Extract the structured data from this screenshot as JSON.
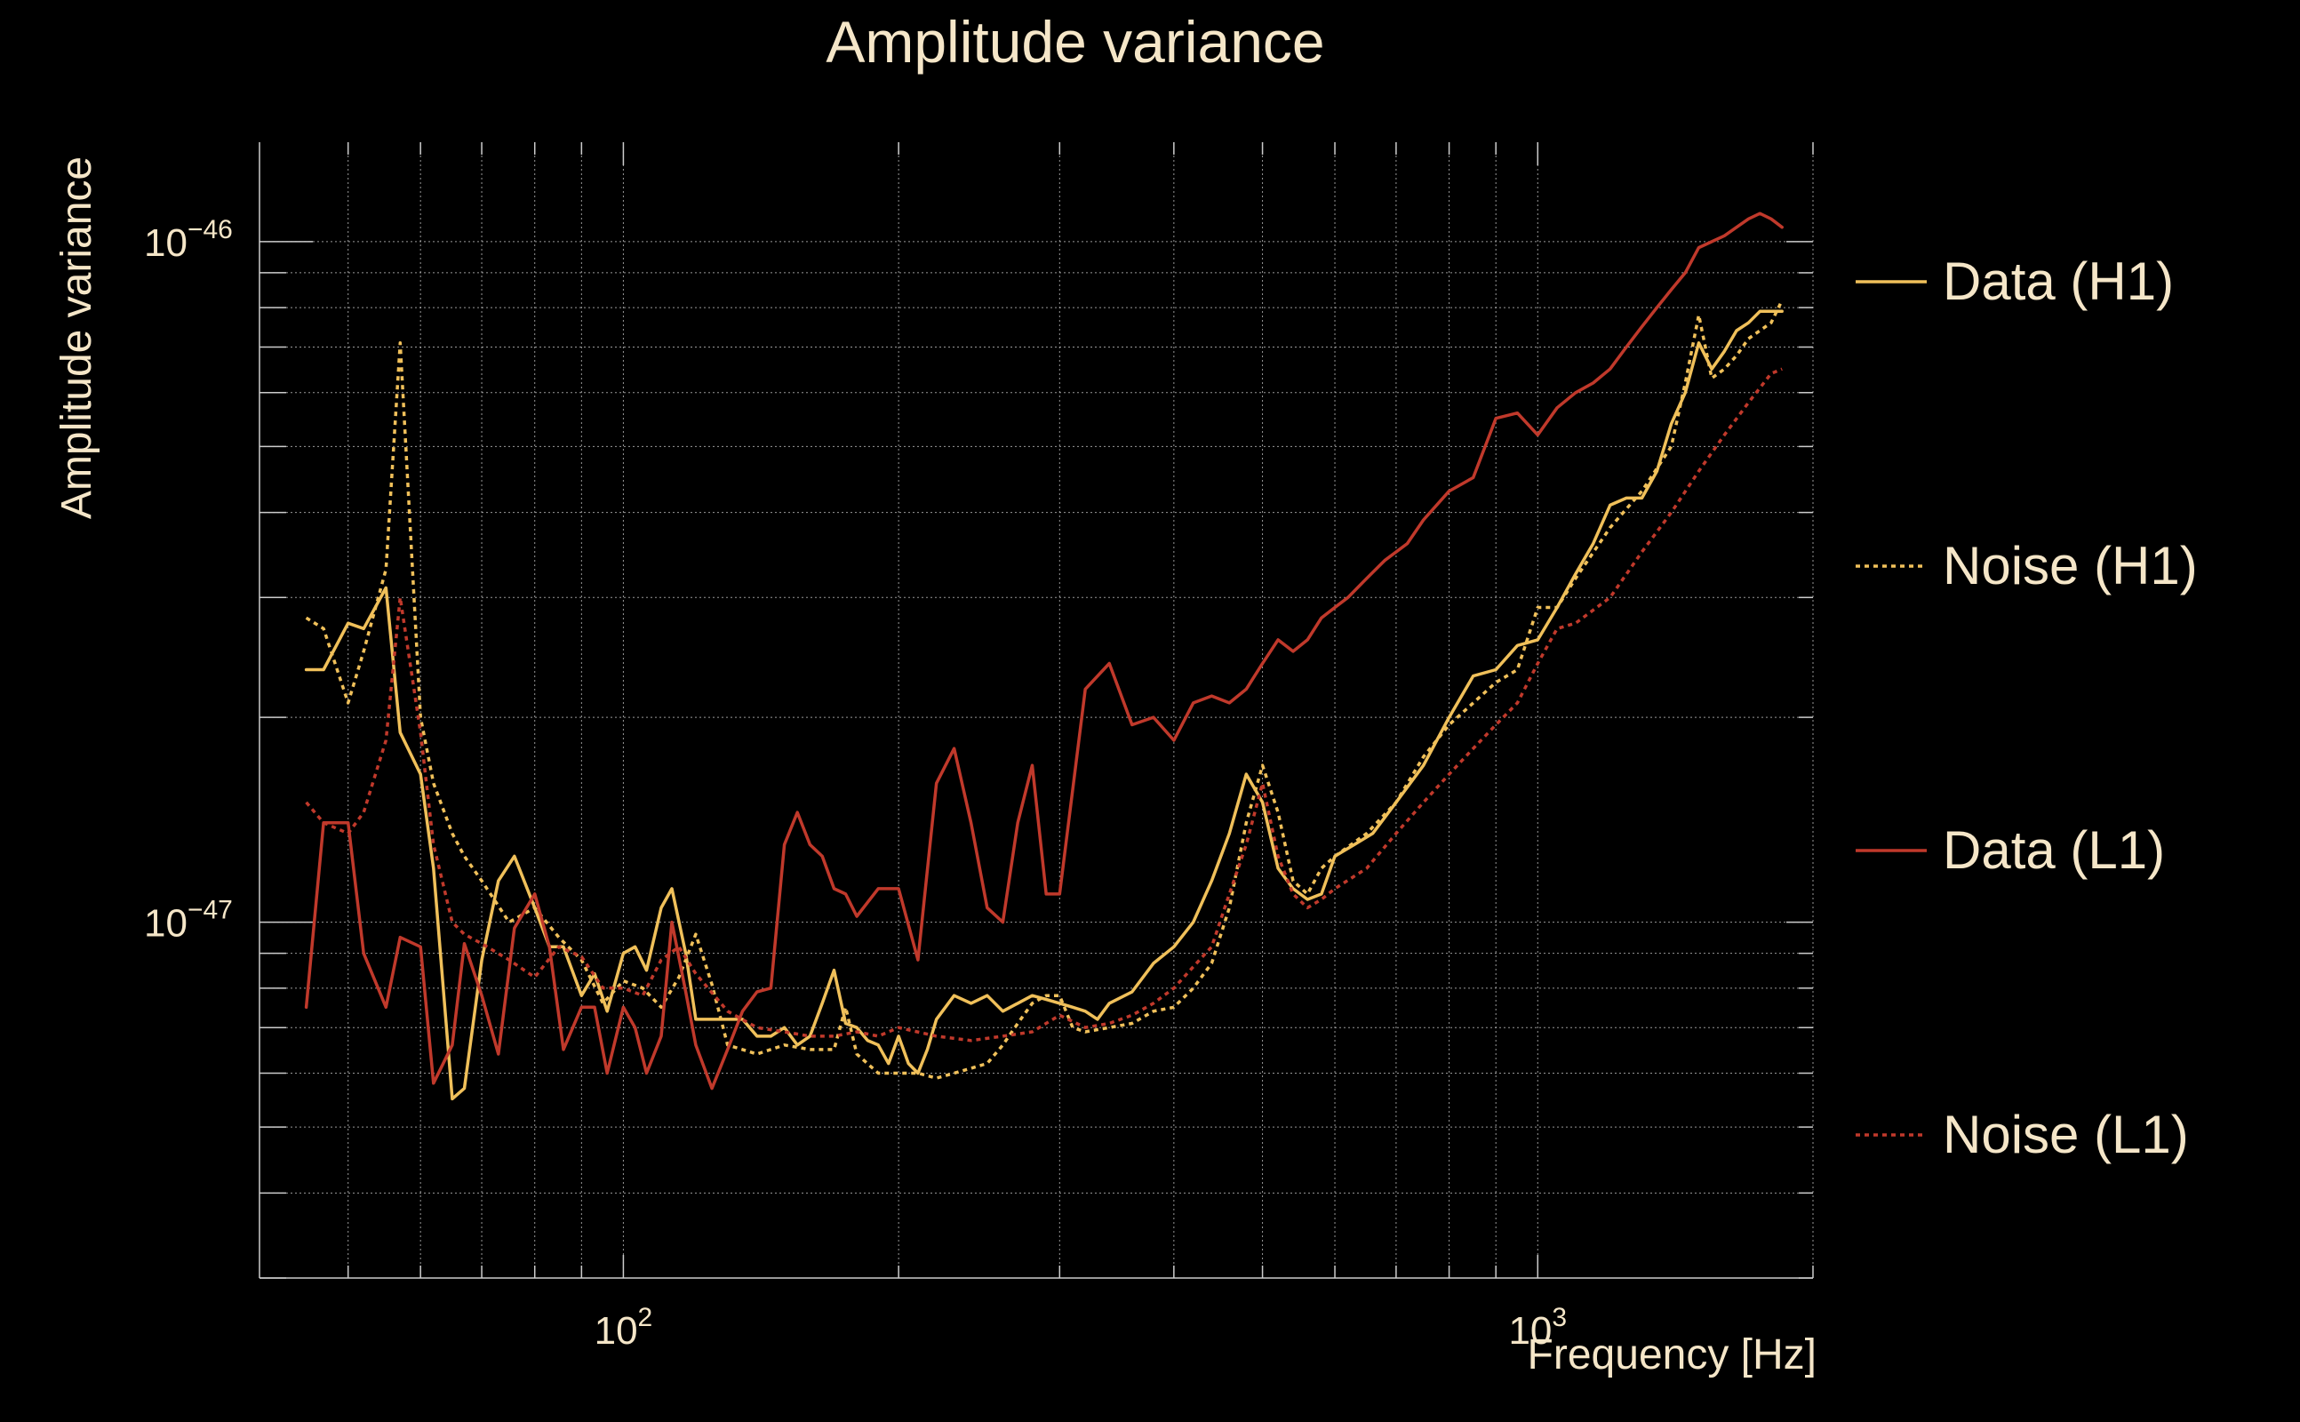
{
  "chart_data": {
    "type": "line",
    "title": "Amplitude variance",
    "xlabel": "Frequency [Hz]",
    "ylabel": "Amplitude variance",
    "xscale": "log",
    "yscale": "log",
    "xlim": [
      40,
      2000
    ],
    "ylim": [
      3e-48,
      1.4e-46
    ],
    "xticks": [
      {
        "value": 100,
        "base": "10",
        "exp": "2"
      },
      {
        "value": 1000,
        "base": "10",
        "exp": "3"
      }
    ],
    "yticks": [
      {
        "value": 1e-47,
        "base": "10",
        "exp": "−47"
      },
      {
        "value": 1e-46,
        "base": "10",
        "exp": "−46"
      }
    ],
    "grid": true,
    "legend_position": "right",
    "colors": {
      "h1": "#f0c05a",
      "l1": "#c0392b",
      "text": "#f5e6c8",
      "grid": "#cccccc"
    },
    "series": [
      {
        "name": "Data (H1)",
        "style": "solid",
        "color": "#f0c05a",
        "x": [
          45,
          47,
          50,
          52,
          55,
          57,
          60,
          62,
          65,
          67,
          70,
          73,
          76,
          80,
          83,
          86,
          90,
          93,
          96,
          100,
          103,
          106,
          110,
          113,
          117,
          120,
          125,
          130,
          135,
          140,
          145,
          150,
          155,
          160,
          165,
          170,
          175,
          180,
          185,
          190,
          195,
          200,
          205,
          210,
          215,
          220,
          230,
          240,
          250,
          260,
          270,
          280,
          290,
          300,
          310,
          320,
          330,
          340,
          360,
          380,
          400,
          420,
          440,
          460,
          480,
          500,
          520,
          540,
          560,
          580,
          600,
          630,
          660,
          700,
          750,
          800,
          850,
          900,
          950,
          1000,
          1050,
          1100,
          1150,
          1200,
          1250,
          1300,
          1350,
          1400,
          1450,
          1500,
          1550,
          1600,
          1650,
          1700,
          1750,
          1800,
          1850
        ],
        "y": [
          2.35e-47,
          2.35e-47,
          2.75e-47,
          2.7e-47,
          3.1e-47,
          1.9e-47,
          1.65e-47,
          1.2e-47,
          5.5e-48,
          5.7e-48,
          8.8e-48,
          1.15e-47,
          1.25e-47,
          1.05e-47,
          9.2e-48,
          9.2e-48,
          7.8e-48,
          8.4e-48,
          7.4e-48,
          9e-48,
          9.2e-48,
          8.5e-48,
          1.05e-47,
          1.12e-47,
          9e-48,
          7.2e-48,
          7.2e-48,
          7.2e-48,
          7.2e-48,
          6.8e-48,
          6.8e-48,
          7e-48,
          6.6e-48,
          6.8e-48,
          7.6e-48,
          8.5e-48,
          7.1e-48,
          7e-48,
          6.7e-48,
          6.6e-48,
          6.2e-48,
          6.8e-48,
          6.2e-48,
          6e-48,
          6.5e-48,
          7.2e-48,
          7.8e-48,
          7.6e-48,
          7.8e-48,
          7.4e-48,
          7.6e-48,
          7.8e-48,
          7.7e-48,
          7.6e-48,
          7.5e-48,
          7.4e-48,
          7.2e-48,
          7.6e-48,
          7.9e-48,
          8.7e-48,
          9.2e-48,
          1e-47,
          1.15e-47,
          1.35e-47,
          1.65e-47,
          1.5e-47,
          1.2e-47,
          1.12e-47,
          1.08e-47,
          1.1e-47,
          1.25e-47,
          1.3e-47,
          1.35e-47,
          1.5e-47,
          1.7e-47,
          2e-47,
          2.3e-47,
          2.35e-47,
          2.55e-47,
          2.6e-47,
          2.9e-47,
          3.25e-47,
          3.6e-47,
          4.1e-47,
          4.2e-47,
          4.2e-47,
          4.6e-47,
          5.4e-47,
          6e-47,
          7.1e-47,
          6.5e-47,
          6.9e-47,
          7.4e-47,
          7.6e-47,
          7.9e-47,
          7.9e-47,
          7.9e-47
        ]
      },
      {
        "name": "Noise (H1)",
        "style": "dotted",
        "color": "#f0c05a",
        "x": [
          45,
          47,
          50,
          52,
          55,
          57,
          60,
          62,
          65,
          67,
          70,
          75,
          80,
          85,
          90,
          95,
          100,
          105,
          110,
          115,
          120,
          125,
          130,
          140,
          150,
          160,
          170,
          175,
          180,
          190,
          200,
          210,
          220,
          230,
          240,
          250,
          260,
          270,
          280,
          290,
          300,
          310,
          320,
          340,
          360,
          380,
          400,
          420,
          440,
          460,
          480,
          500,
          520,
          540,
          560,
          580,
          600,
          650,
          700,
          750,
          800,
          850,
          900,
          950,
          1000,
          1050,
          1100,
          1200,
          1300,
          1400,
          1450,
          1500,
          1550,
          1600,
          1650,
          1700,
          1750,
          1800,
          1850
        ],
        "y": [
          2.8e-47,
          2.7e-47,
          2.1e-47,
          2.5e-47,
          3.3e-47,
          7.1e-47,
          2e-47,
          1.6e-47,
          1.35e-47,
          1.25e-47,
          1.15e-47,
          1e-47,
          1.05e-47,
          9.5e-48,
          8.8e-48,
          7.6e-48,
          8.2e-48,
          8e-48,
          7.5e-48,
          8.3e-48,
          9.6e-48,
          8.1e-48,
          6.6e-48,
          6.4e-48,
          6.6e-48,
          6.5e-48,
          6.5e-48,
          7.5e-48,
          6.4e-48,
          6e-48,
          6e-48,
          6e-48,
          5.9e-48,
          6e-48,
          6.1e-48,
          6.2e-48,
          6.6e-48,
          7.1e-48,
          7.6e-48,
          7.8e-48,
          7.8e-48,
          7e-48,
          6.9e-48,
          7e-48,
          7.1e-48,
          7.4e-48,
          7.5e-48,
          8e-48,
          8.7e-48,
          1.05e-47,
          1.4e-47,
          1.7e-47,
          1.45e-47,
          1.15e-47,
          1.1e-47,
          1.2e-47,
          1.25e-47,
          1.35e-47,
          1.5e-47,
          1.75e-47,
          1.95e-47,
          2.1e-47,
          2.25e-47,
          2.35e-47,
          2.9e-47,
          2.9e-47,
          3.2e-47,
          3.8e-47,
          4.3e-47,
          5e-47,
          6.2e-47,
          7.8e-47,
          6.3e-47,
          6.5e-47,
          6.8e-47,
          7.2e-47,
          7.4e-47,
          7.6e-47,
          8.2e-47
        ]
      },
      {
        "name": "Data (L1)",
        "style": "solid",
        "color": "#c0392b",
        "x": [
          45,
          47,
          50,
          52,
          55,
          57,
          60,
          62,
          65,
          67,
          70,
          73,
          76,
          80,
          83,
          86,
          90,
          93,
          96,
          100,
          103,
          106,
          110,
          113,
          117,
          120,
          125,
          130,
          135,
          140,
          145,
          150,
          155,
          160,
          165,
          170,
          175,
          180,
          190,
          200,
          210,
          220,
          230,
          240,
          250,
          260,
          270,
          280,
          290,
          300,
          320,
          340,
          360,
          380,
          400,
          420,
          440,
          460,
          480,
          500,
          520,
          540,
          560,
          580,
          600,
          620,
          650,
          680,
          720,
          750,
          800,
          850,
          900,
          950,
          1000,
          1050,
          1100,
          1150,
          1200,
          1250,
          1300,
          1350,
          1400,
          1450,
          1500,
          1550,
          1600,
          1650,
          1700,
          1750,
          1800,
          1850
        ],
        "y": [
          7.5e-48,
          1.4e-47,
          1.4e-47,
          9e-48,
          7.5e-48,
          9.5e-48,
          9.2e-48,
          5.8e-48,
          6.6e-48,
          9.3e-48,
          7.8e-48,
          6.4e-48,
          9.8e-48,
          1.1e-47,
          9.2e-48,
          6.5e-48,
          7.5e-48,
          7.5e-48,
          6e-48,
          7.5e-48,
          7e-48,
          6e-48,
          6.8e-48,
          1e-47,
          7.9e-48,
          6.6e-48,
          5.7e-48,
          6.5e-48,
          7.4e-48,
          7.9e-48,
          8e-48,
          1.3e-47,
          1.45e-47,
          1.3e-47,
          1.25e-47,
          1.12e-47,
          1.1e-47,
          1.02e-47,
          1.12e-47,
          1.12e-47,
          8.8e-48,
          1.6e-47,
          1.8e-47,
          1.4e-47,
          1.05e-47,
          1e-47,
          1.4e-47,
          1.7e-47,
          1.1e-47,
          1.1e-47,
          2.2e-47,
          2.4e-47,
          1.95e-47,
          2e-47,
          1.85e-47,
          2.1e-47,
          2.15e-47,
          2.1e-47,
          2.2e-47,
          2.4e-47,
          2.6e-47,
          2.5e-47,
          2.6e-47,
          2.8e-47,
          2.9e-47,
          3e-47,
          3.2e-47,
          3.4e-47,
          3.6e-47,
          3.9e-47,
          4.3e-47,
          4.5e-47,
          5.5e-47,
          5.6e-47,
          5.2e-47,
          5.7e-47,
          6e-47,
          6.2e-47,
          6.5e-47,
          7e-47,
          7.5e-47,
          8e-47,
          8.5e-47,
          9e-47,
          9.8e-47,
          1e-46,
          1.02e-46,
          1.05e-46,
          1.08e-46,
          1.1e-46,
          1.08e-46,
          1.05e-46
        ]
      },
      {
        "name": "Noise (L1)",
        "style": "dotted",
        "color": "#c0392b",
        "x": [
          45,
          47,
          50,
          52,
          55,
          57,
          60,
          62,
          65,
          67,
          70,
          75,
          80,
          85,
          90,
          95,
          100,
          105,
          110,
          115,
          120,
          130,
          140,
          150,
          160,
          170,
          180,
          190,
          200,
          220,
          240,
          260,
          280,
          300,
          320,
          340,
          360,
          380,
          400,
          420,
          440,
          460,
          480,
          500,
          520,
          540,
          560,
          580,
          600,
          650,
          700,
          750,
          800,
          850,
          900,
          950,
          1000,
          1050,
          1100,
          1200,
          1300,
          1400,
          1500,
          1600,
          1700,
          1800,
          1850
        ],
        "y": [
          1.5e-47,
          1.4e-47,
          1.35e-47,
          1.45e-47,
          1.85e-47,
          3e-47,
          1.9e-47,
          1.3e-47,
          1e-47,
          9.6e-48,
          9.3e-48,
          8.8e-48,
          8.3e-48,
          9.2e-48,
          8.9e-48,
          8e-48,
          8e-48,
          7.8e-48,
          8.8e-48,
          9.2e-48,
          8.4e-48,
          7.4e-48,
          7e-48,
          6.9e-48,
          6.8e-48,
          6.8e-48,
          6.9e-48,
          6.8e-48,
          7e-48,
          6.8e-48,
          6.7e-48,
          6.8e-48,
          6.9e-48,
          7.3e-48,
          7e-48,
          7.1e-48,
          7.3e-48,
          7.6e-48,
          8e-48,
          8.6e-48,
          9.2e-48,
          1.1e-47,
          1.3e-47,
          1.6e-47,
          1.25e-47,
          1.1e-47,
          1.05e-47,
          1.08e-47,
          1.12e-47,
          1.2e-47,
          1.35e-47,
          1.5e-47,
          1.65e-47,
          1.8e-47,
          1.95e-47,
          2.1e-47,
          2.4e-47,
          2.7e-47,
          2.75e-47,
          3e-47,
          3.5e-47,
          4e-47,
          4.6e-47,
          5.2e-47,
          5.8e-47,
          6.4e-47,
          6.5e-47
        ]
      }
    ]
  }
}
